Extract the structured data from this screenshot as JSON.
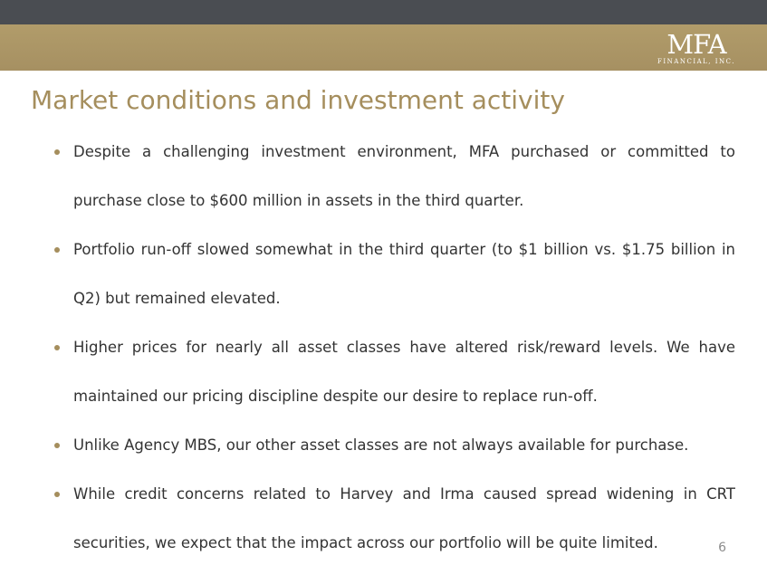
{
  "header": {
    "logo_text": "MFA",
    "logo_subtext": "FINANCIAL, INC."
  },
  "slide": {
    "title": "Market conditions and investment activity",
    "bullets": [
      "Despite a challenging investment environment, MFA purchased or committed to purchase close to $600 million in assets in the third quarter.",
      "Portfolio run-off slowed somewhat in the third quarter (to $1 billion vs. $1.75 billion in Q2) but remained elevated.",
      "Higher prices for nearly all asset classes have altered risk/reward levels.  We have maintained our pricing discipline despite our desire to replace run-off.",
      "Unlike Agency MBS, our other asset classes are not always available for purchase.",
      "While credit concerns related to Harvey and Irma caused spread widening in CRT securities, we expect that the impact across our portfolio will be quite limited."
    ],
    "page_number": "6"
  },
  "colors": {
    "top_band": "#4a4d52",
    "header_band": "#a69062",
    "accent": "#a58e5d",
    "body_text": "#333333"
  }
}
